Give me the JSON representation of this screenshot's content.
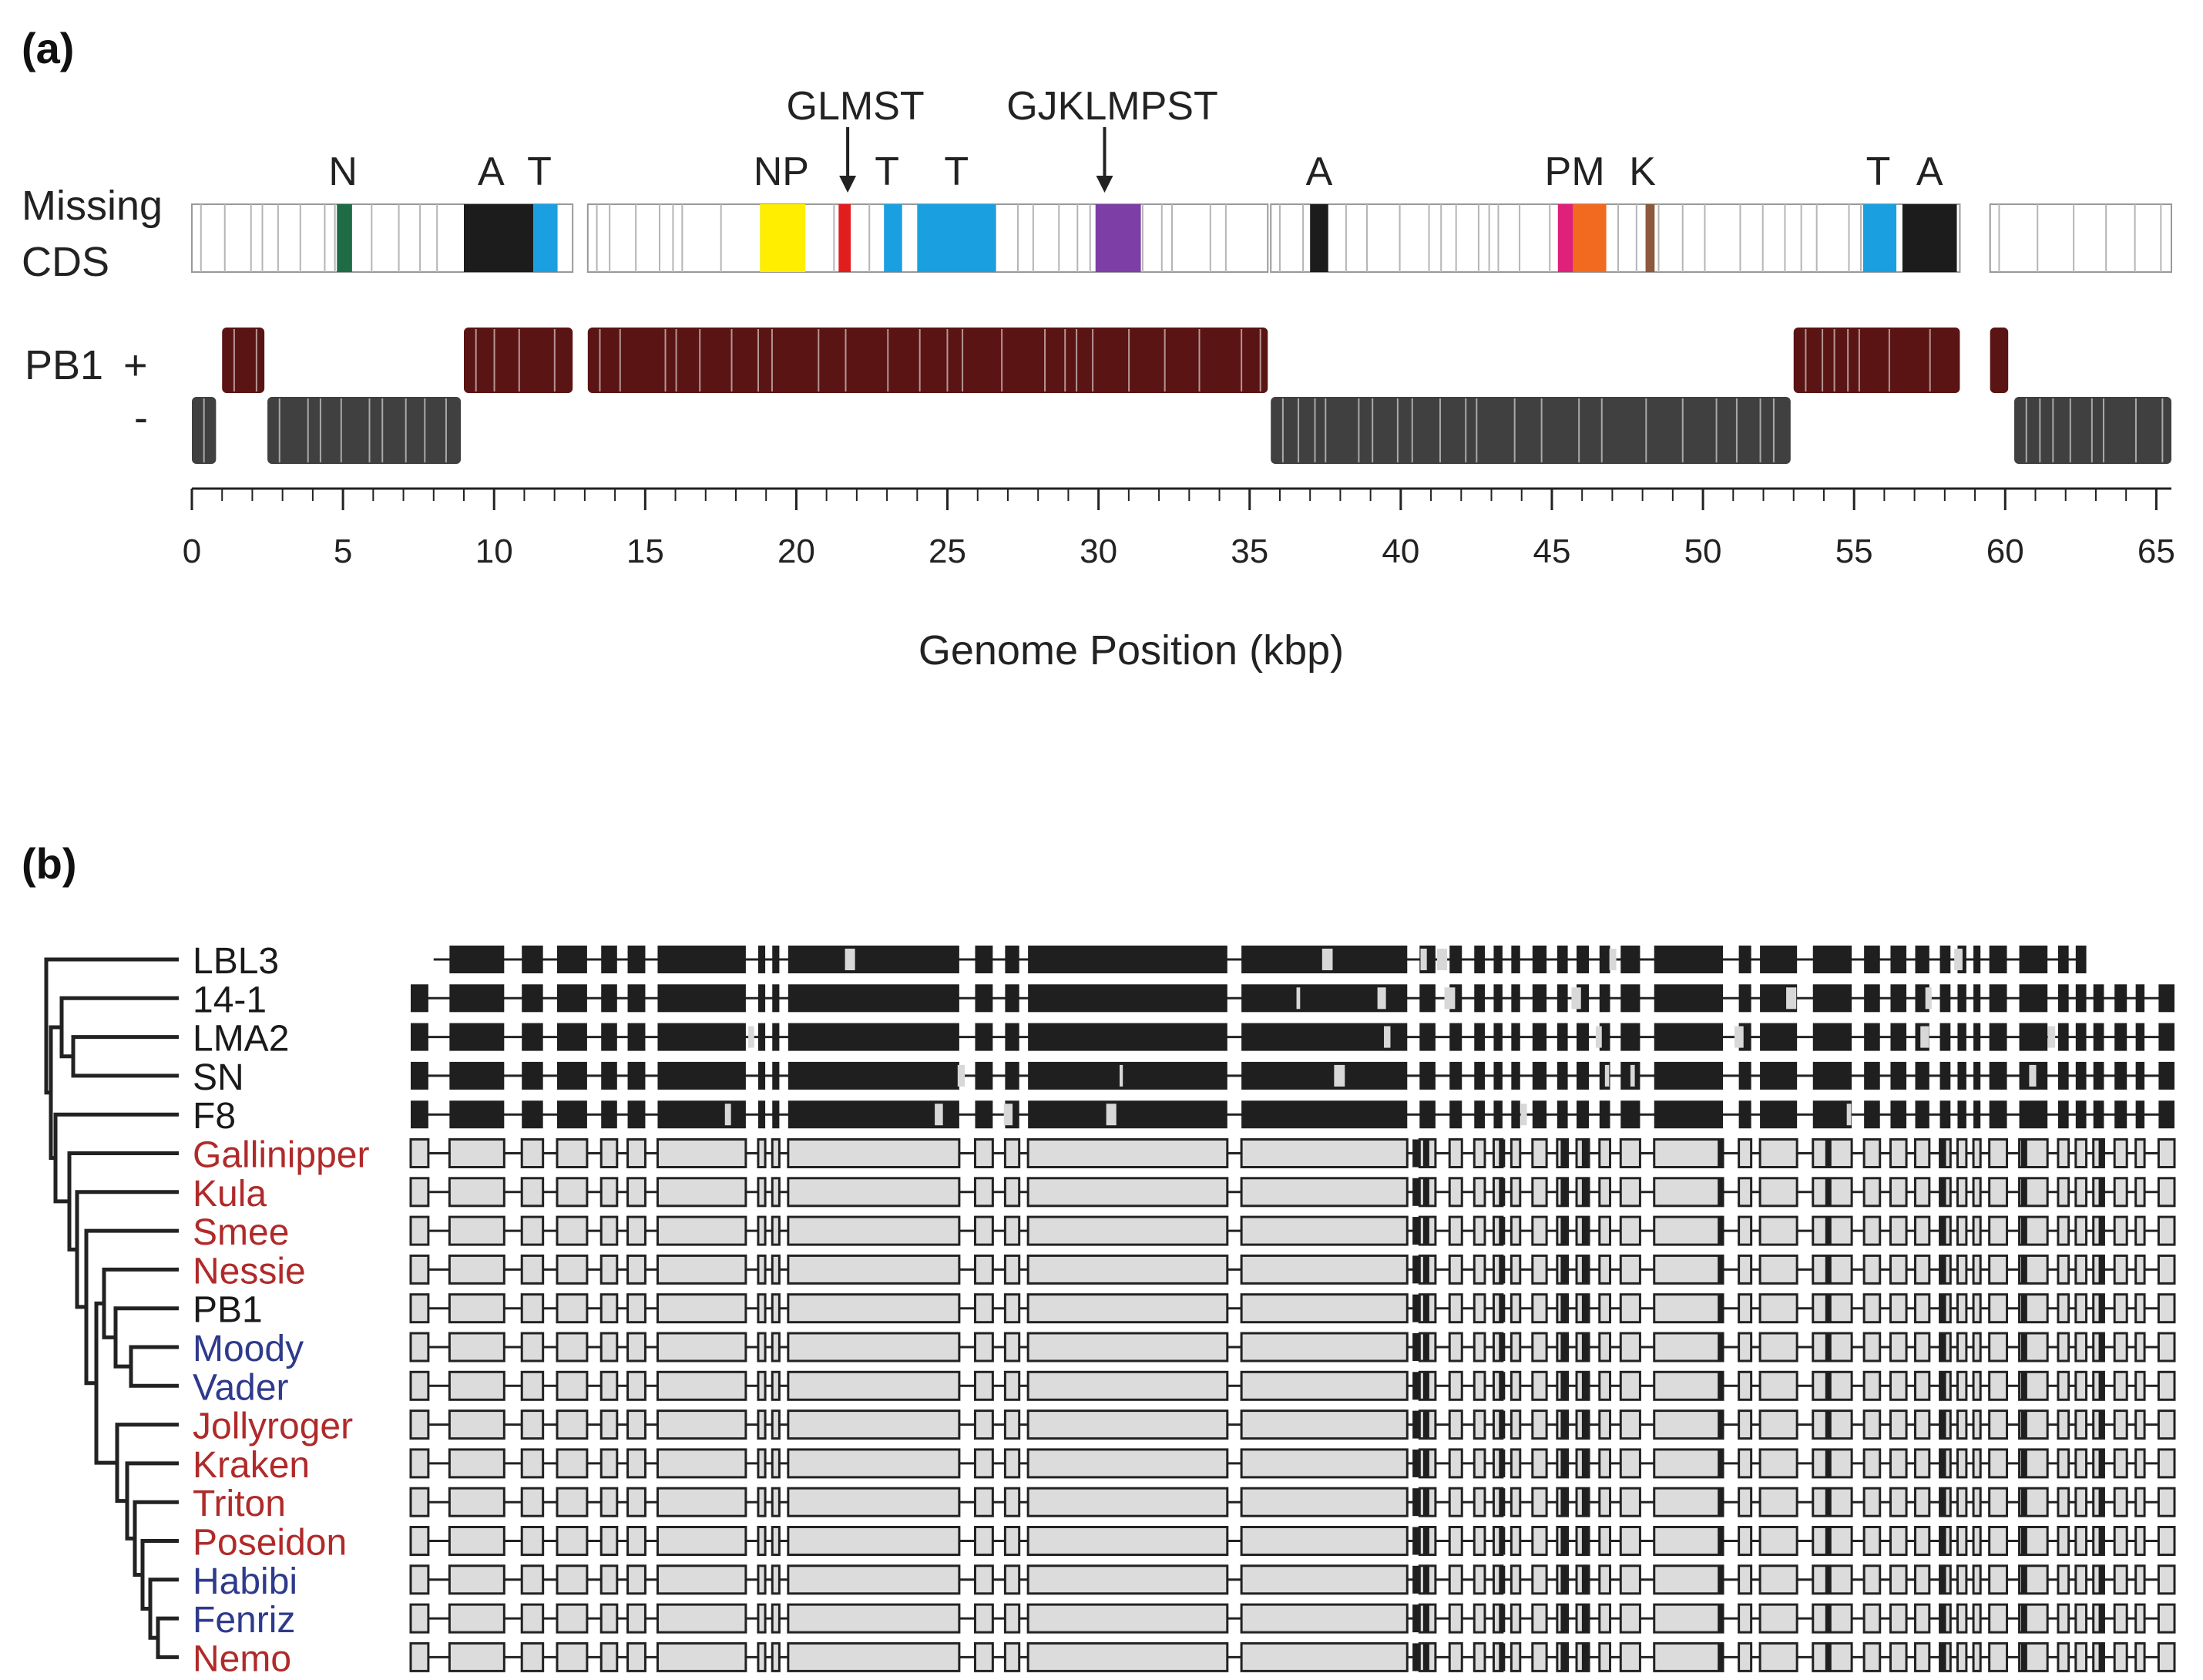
{
  "panel_a": {
    "label": "(a)",
    "missing_label_1": "Missing",
    "missing_label_2": "CDS",
    "pb1_label": "PB1",
    "plus_label": "+",
    "minus_label": "-",
    "xlabel": "Genome Position (kbp)",
    "axis_min": 0,
    "axis_max": 65.5,
    "ticks": [
      "0",
      "5",
      "10",
      "15",
      "20",
      "25",
      "30",
      "35",
      "40",
      "45",
      "50",
      "55",
      "60",
      "65"
    ],
    "missing_blocks": [
      {
        "start": 4.8,
        "end": 5.3,
        "color": "#1e6b45"
      },
      {
        "start": 9.0,
        "end": 11.3,
        "color": "#1c1c1c"
      },
      {
        "start": 11.3,
        "end": 12.1,
        "color": "#1aa0e0"
      },
      {
        "start": 18.8,
        "end": 20.3,
        "color": "#ffee00"
      },
      {
        "start": 21.4,
        "end": 21.8,
        "color": "#e11d1d"
      },
      {
        "start": 22.9,
        "end": 23.5,
        "color": "#1aa0e0"
      },
      {
        "start": 24.0,
        "end": 26.6,
        "color": "#1aa0e0"
      },
      {
        "start": 29.9,
        "end": 31.4,
        "color": "#7d3ea6"
      },
      {
        "start": 37.0,
        "end": 37.6,
        "color": "#1c1c1c"
      },
      {
        "start": 45.2,
        "end": 45.7,
        "color": "#e0217a"
      },
      {
        "start": 45.7,
        "end": 46.8,
        "color": "#f26a1f"
      },
      {
        "start": 48.1,
        "end": 48.4,
        "color": "#8b5a3c"
      },
      {
        "start": 55.3,
        "end": 56.4,
        "color": "#1aa0e0"
      },
      {
        "start": 56.6,
        "end": 58.4,
        "color": "#1c1c1c"
      }
    ],
    "missing_labels": [
      {
        "text": "N",
        "pos": 5.0
      },
      {
        "text": "A",
        "pos": 9.9
      },
      {
        "text": "T",
        "pos": 11.5
      },
      {
        "text": "NP",
        "pos": 19.5
      },
      {
        "text": "T",
        "pos": 23.0
      },
      {
        "text": "T",
        "pos": 25.3
      },
      {
        "text": "A",
        "pos": 37.3
      },
      {
        "text": "P",
        "pos": 45.2
      },
      {
        "text": "M",
        "pos": 46.2
      },
      {
        "text": "K",
        "pos": 48.0
      },
      {
        "text": "T",
        "pos": 55.8
      },
      {
        "text": "A",
        "pos": 57.5
      }
    ],
    "arrow_labels": [
      {
        "text": "GLMST",
        "pos": 21.7
      },
      {
        "text": "GJKLMPST",
        "pos": 30.2
      }
    ],
    "plus_segments": [
      [
        1.0,
        2.4
      ],
      [
        9.0,
        12.6
      ],
      [
        13.1,
        35.6
      ],
      [
        53.0,
        58.5
      ],
      [
        59.5,
        60.1
      ]
    ],
    "minus_segments": [
      [
        0.0,
        0.8
      ],
      [
        2.5,
        8.9
      ],
      [
        35.7,
        52.9
      ],
      [
        60.3,
        65.5
      ]
    ]
  },
  "panel_b": {
    "label": "(b)",
    "genomes": [
      {
        "name": "LBL3",
        "color": "#1a1a1a",
        "style": "dark"
      },
      {
        "name": "14-1",
        "color": "#1a1a1a",
        "style": "dark"
      },
      {
        "name": "LMA2",
        "color": "#1a1a1a",
        "style": "dark"
      },
      {
        "name": "SN",
        "color": "#1a1a1a",
        "style": "dark"
      },
      {
        "name": "F8",
        "color": "#1a1a1a",
        "style": "dark"
      },
      {
        "name": "Gallinipper",
        "color": "#b02a2a",
        "style": "light"
      },
      {
        "name": "Kula",
        "color": "#b02a2a",
        "style": "light"
      },
      {
        "name": "Smee",
        "color": "#b02a2a",
        "style": "light"
      },
      {
        "name": "Nessie",
        "color": "#b02a2a",
        "style": "light"
      },
      {
        "name": "PB1",
        "color": "#1a1a1a",
        "style": "light"
      },
      {
        "name": "Moody",
        "color": "#2e3a8c",
        "style": "light"
      },
      {
        "name": "Vader",
        "color": "#2e3a8c",
        "style": "light"
      },
      {
        "name": "Jollyroger",
        "color": "#b02a2a",
        "style": "light"
      },
      {
        "name": "Kraken",
        "color": "#b02a2a",
        "style": "light"
      },
      {
        "name": "Triton",
        "color": "#b02a2a",
        "style": "light"
      },
      {
        "name": "Poseidon",
        "color": "#b02a2a",
        "style": "light"
      },
      {
        "name": "Habibi",
        "color": "#2e3a8c",
        "style": "light"
      },
      {
        "name": "Fenriz",
        "color": "#2e3a8c",
        "style": "light"
      },
      {
        "name": "Nemo",
        "color": "#b02a2a",
        "style": "light"
      }
    ]
  },
  "colors": {
    "plus_strand": "#5a1414",
    "minus_strand": "#404040",
    "dark_gene": "#1f1f1f",
    "light_gene": "#dcdcdc",
    "gene_outline": "#222222"
  }
}
